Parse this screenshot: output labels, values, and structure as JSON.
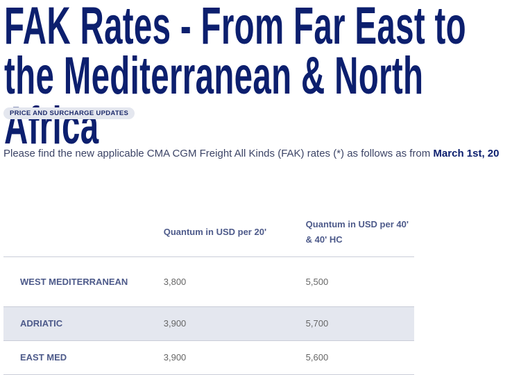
{
  "header": {
    "title": "FAK Rates - From Far East to the Mediterranean & North Africa",
    "tag": "PRICE AND SURCHARGE UPDATES"
  },
  "intro": {
    "text": "Please find the new applicable CMA CGM Freight All Kinds (FAK) rates (*) as follows as from ",
    "bold": "March 1st, 20"
  },
  "table": {
    "headers": [
      "Quantum in USD per 20'",
      "Quantum in USD per 40' & 40' HC"
    ],
    "rows": [
      [
        "WEST MEDITERRANEAN",
        "3,800",
        "5,500"
      ],
      [
        "ADRIATIC",
        "3,900",
        "5,700"
      ],
      [
        "EAST MED",
        "3,900",
        "5,600"
      ]
    ]
  }
}
